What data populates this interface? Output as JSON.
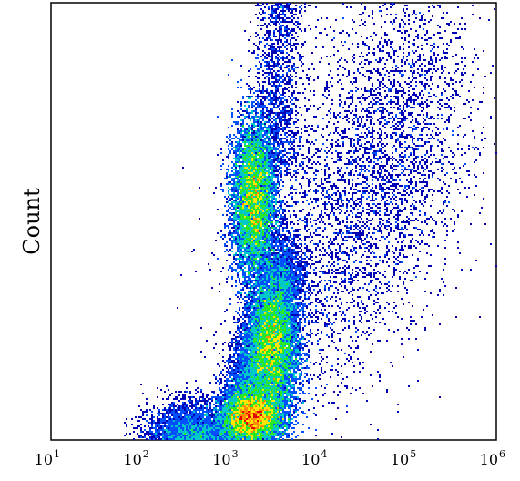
{
  "chart_data": {
    "type": "scatter",
    "title": "",
    "xlabel": "",
    "ylabel": "Count",
    "x_scale": "log",
    "xlim": [
      10,
      1000000
    ],
    "x_ticks": [
      {
        "base": "10",
        "exp": "1",
        "value": 10
      },
      {
        "base": "10",
        "exp": "2",
        "value": 100
      },
      {
        "base": "10",
        "exp": "3",
        "value": 1000
      },
      {
        "base": "10",
        "exp": "4",
        "value": 10000
      },
      {
        "base": "10",
        "exp": "5",
        "value": 100000
      },
      {
        "base": "10",
        "exp": "6",
        "value": 1000000
      }
    ],
    "grid": false,
    "legend": "none",
    "density_colors": [
      "#0000b4",
      "#0050ff",
      "#00c8c8",
      "#28e628",
      "#ffe600",
      "#ff8c00",
      "#e60000"
    ],
    "populations": [
      {
        "x_center": 1900,
        "y_center": 0.55,
        "x_spread_log": 0.12,
        "y_spread": 0.09,
        "share": 0.28
      },
      {
        "x_center": 3200,
        "y_center": 0.2,
        "x_spread_log": 0.14,
        "y_spread": 0.08,
        "share": 0.22
      },
      {
        "x_center": 1800,
        "y_center": 0.05,
        "x_spread_log": 0.17,
        "y_spread": 0.03,
        "share": 0.22
      }
    ]
  }
}
